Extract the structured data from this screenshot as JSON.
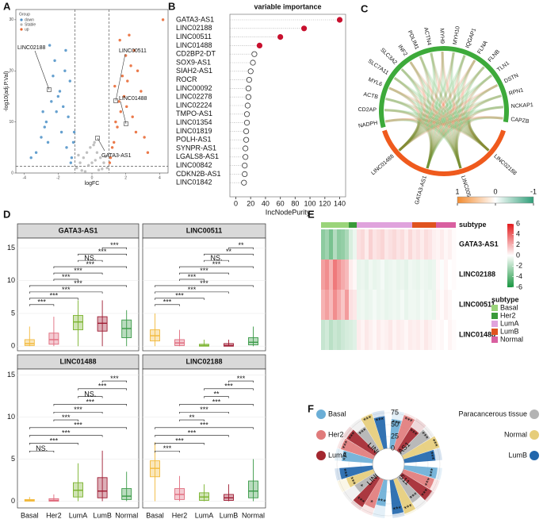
{
  "panels": {
    "A": {
      "letter": "A",
      "type": "scatter",
      "xlabel": "logFC",
      "ylabel": "-log10(adj.P.Val)",
      "xlim": [
        -4.5,
        4.5
      ],
      "ylim": [
        0,
        32
      ],
      "xticks": [
        -4,
        -2,
        0,
        2,
        4
      ],
      "yticks": [
        0,
        10,
        20,
        30
      ],
      "cutoff_lines": {
        "x": [
          -1,
          1
        ],
        "y": 1.3
      },
      "legend_title": "Group",
      "groups": [
        {
          "name": "down",
          "color": "#4a8fc7",
          "x": [
            -1.2,
            -1.5,
            -1.8,
            -2.1,
            -2.4,
            -2.7,
            -3.0,
            -3.3,
            -1.3,
            -1.6,
            -1.9,
            -2.2,
            -2.5,
            -2.8,
            -1.1,
            -1.4,
            -1.7,
            -2.0,
            -2.3,
            -2.6,
            -1.25,
            -1.55,
            -2.9,
            -3.6,
            -1.05
          ],
          "y": [
            3,
            5,
            8,
            12,
            14,
            10,
            7,
            4,
            18,
            20,
            16,
            22,
            25,
            9,
            6,
            11,
            13,
            15,
            19,
            6,
            2,
            24,
            12,
            3,
            8
          ]
        },
        {
          "name": "Stable",
          "color": "#b5b5b5",
          "x": [
            -0.9,
            -0.7,
            -0.5,
            -0.3,
            -0.1,
            0.1,
            0.3,
            0.5,
            0.7,
            0.9,
            -0.6,
            -0.2,
            0.2,
            0.6,
            -0.8,
            0.8,
            -0.4,
            0.4,
            0,
            0.15
          ],
          "y": [
            1,
            2,
            3,
            4,
            5,
            5.5,
            4,
            3,
            2,
            1,
            0.5,
            1.5,
            2.5,
            0.8,
            3.5,
            3.2,
            0.3,
            0.6,
            2,
            6
          ]
        },
        {
          "name": "up",
          "color": "#e8632b",
          "x": [
            1.1,
            1.3,
            1.5,
            1.7,
            1.9,
            2.1,
            2.3,
            2.5,
            2.7,
            2.9,
            1.2,
            1.4,
            1.6,
            1.8,
            2.0,
            2.2,
            2.4,
            2.6,
            1.05,
            1.35,
            1.65,
            2.05,
            3.1,
            3.3,
            4.2
          ],
          "y": [
            3,
            6,
            9,
            12,
            15,
            18,
            21,
            24,
            20,
            16,
            5,
            10,
            14,
            19,
            23,
            27,
            11,
            8,
            2,
            17,
            26,
            13,
            7,
            4,
            30
          ]
        }
      ],
      "annotations": [
        "LINC02188",
        "LINC00511",
        "LINC01488",
        "GATA3-AS1"
      ]
    },
    "B": {
      "letter": "B",
      "type": "dot",
      "title": "variable importance",
      "xlabel": "IncNodePurity",
      "xlim": [
        -8,
        148
      ],
      "xticks": [
        0,
        20,
        40,
        60,
        80,
        100,
        120,
        140
      ],
      "categories": [
        "GATA3-AS1",
        "LINC02188",
        "LINC00511",
        "LINC01488",
        "CD2BP2-DT",
        "SOX9-AS1",
        "SIAH2-AS1",
        "ROCR",
        "LINC00092",
        "LINC02278",
        "LINC02224",
        "TMPO-AS1",
        "LINC01354",
        "LINC01819",
        "POLH-AS1",
        "SYNPR-AS1",
        "LGALS8-AS1",
        "LINC00842",
        "CDKN2B-AS1",
        "LINC01842"
      ],
      "values": [
        140,
        92,
        60,
        32,
        25,
        23,
        20,
        18,
        17,
        17,
        16,
        15,
        15,
        14,
        14,
        13,
        13,
        12,
        12,
        11
      ],
      "colors": [
        "#c8102e",
        "#c8102e",
        "#c8102e",
        "#c8102e",
        "#ffffff",
        "#ffffff",
        "#ffffff",
        "#ffffff",
        "#ffffff",
        "#ffffff",
        "#ffffff",
        "#ffffff",
        "#ffffff",
        "#ffffff",
        "#ffffff",
        "#ffffff",
        "#ffffff",
        "#ffffff",
        "#ffffff",
        "#ffffff"
      ]
    },
    "C": {
      "letter": "C",
      "type": "chord",
      "genes": [
        "NADPH",
        "CD2AP",
        "ACTB",
        "MYL6",
        "SLC7A11",
        "SLC3A2",
        "INF2",
        "PDLIM1",
        "ACTN4",
        "MYH9",
        "MYH10",
        "IQGAP1",
        "FLNA",
        "FLNB",
        "TLN1",
        "DSTN",
        "RPN1",
        "NCKAP1",
        "CAPZB"
      ],
      "lncRNAs": [
        "LINC02188",
        "LINC00511",
        "GATA3-AS1",
        "LINC01488"
      ],
      "gene_color": "#3daa3a",
      "lnc_color": "#ef5a1d",
      "colorbar": {
        "colors": [
          "#f28a2e",
          "#ffffff",
          "#2e9e78"
        ],
        "clim": [
          -1,
          1
        ],
        "ticks": [
          1,
          0,
          -1
        ]
      }
    },
    "D": {
      "letter": "D",
      "type": "box",
      "categories": [
        "Basal",
        "Her2",
        "LumA",
        "LumB",
        "Normal"
      ],
      "colors": [
        "#f2b93b",
        "#e06b7d",
        "#7ab32e",
        "#9e1b32",
        "#3a9a47"
      ],
      "yticks": [
        0,
        5,
        10,
        15
      ],
      "subpanels": [
        {
          "title": "GATA3-AS1",
          "ylim": [
            -0.7,
            16.5
          ],
          "stats": [
            [
              0,
              0.1,
              0.4,
              1,
              3
            ],
            [
              0,
              0.3,
              1,
              2,
              4.5
            ],
            [
              0,
              2.5,
              3.7,
              4.7,
              7
            ],
            [
              0,
              2.3,
              3.5,
              4.5,
              7
            ],
            [
              0,
              1.3,
              2.7,
              4,
              5.5
            ]
          ],
          "sig": [
            "***",
            "***",
            "***",
            "***",
            "***",
            "***",
            "***",
            "NS.",
            "***",
            "***"
          ]
        },
        {
          "title": "LINC00511",
          "ylim": [
            -0.7,
            16.5
          ],
          "stats": [
            [
              0,
              0.8,
              1.6,
              2.5,
              5
            ],
            [
              0,
              0.1,
              0.5,
              1,
              2.5
            ],
            [
              0,
              0,
              0.1,
              0.3,
              1
            ],
            [
              0,
              0,
              0.1,
              0.4,
              1
            ],
            [
              0,
              0.2,
              0.6,
              1.3,
              3
            ]
          ],
          "sig": [
            "***",
            "***",
            "***",
            "***",
            "***",
            "***",
            "***",
            "NS.",
            "**",
            "**"
          ]
        },
        {
          "title": "LINC01488",
          "ylim": [
            -0.8,
            15.7
          ],
          "stats": [
            [
              0,
              0,
              0.1,
              0.2,
              0.5
            ],
            [
              0,
              0,
              0.1,
              0.3,
              0.8
            ],
            [
              0,
              0.5,
              1.3,
              2.2,
              4.5
            ],
            [
              0,
              0.4,
              1.2,
              2.8,
              6
            ],
            [
              0,
              0.2,
              0.6,
              1.5,
              3.5
            ]
          ],
          "sig": [
            "NS.",
            "***",
            "***",
            "***",
            "***",
            "***",
            "***",
            "NS.",
            "***",
            "***"
          ]
        },
        {
          "title": "LINC02188",
          "ylim": [
            -0.8,
            15.7
          ],
          "stats": [
            [
              0,
              2.9,
              3.9,
              4.8,
              7
            ],
            [
              0,
              0.2,
              0.8,
              1.5,
              3
            ],
            [
              0,
              0.1,
              0.5,
              1,
              2
            ],
            [
              0,
              0.1,
              0.4,
              0.8,
              2
            ],
            [
              0,
              0.4,
              1.2,
              2.4,
              5
            ]
          ],
          "sig": [
            "***",
            "***",
            "***",
            "***",
            "**",
            "***",
            "***",
            "**",
            "***",
            "***"
          ]
        }
      ]
    },
    "E": {
      "letter": "E",
      "type": "heatmap",
      "subtype_label": "subtype",
      "legend_title": "subtype",
      "rows": [
        "GATA3-AS1",
        "LINC02188",
        "LINC00511",
        "LINC01488"
      ],
      "subtypes": [
        {
          "name": "Basal",
          "color": "#9ad47a",
          "columns": 7
        },
        {
          "name": "Her2",
          "color": "#3a9a3a",
          "columns": 2
        },
        {
          "name": "LumA",
          "color": "#e0a3dd",
          "columns": 14
        },
        {
          "name": "LumB",
          "color": "#e0531f",
          "columns": 6
        },
        {
          "name": "Normal",
          "color": "#d95fa0",
          "columns": 5
        }
      ],
      "values": [
        [
          -3,
          -2.5,
          -3.5,
          -2,
          -3,
          -2.8,
          -2.2,
          -1,
          -0.5,
          0.8,
          1,
          0.5,
          1.2,
          0.7,
          0.9,
          1.1,
          0.6,
          0.8,
          1,
          0.7,
          0.9,
          0.5,
          1,
          0.6,
          0.8,
          0.5,
          0.9,
          0.7,
          0.4,
          0.3,
          0.5,
          0.2,
          0.4,
          0.1
        ],
        [
          2.5,
          3,
          2,
          3.5,
          2.8,
          2.2,
          1.8,
          0.5,
          0.2,
          -0.6,
          -0.5,
          -0.7,
          -0.4,
          -0.6,
          -0.5,
          -0.3,
          -0.6,
          -0.5,
          -0.4,
          -0.6,
          -0.5,
          -0.7,
          -0.4,
          -0.5,
          -0.6,
          -0.4,
          -0.5,
          -0.6,
          -0.5,
          0.2,
          -0.1,
          0.3,
          0,
          0.1
        ],
        [
          2,
          2.5,
          1.8,
          3,
          2.2,
          1.5,
          2.6,
          0.8,
          0.6,
          -0.5,
          -0.4,
          -0.6,
          -0.5,
          -0.3,
          -0.5,
          -0.4,
          -0.6,
          -0.5,
          -0.4,
          -0.5,
          -0.3,
          -0.6,
          -0.4,
          -0.4,
          -0.5,
          -0.3,
          -0.5,
          -0.4,
          -0.5,
          0.3,
          0.1,
          0.4,
          0.2,
          0
        ],
        [
          -1.5,
          -1.2,
          -1.8,
          -1.4,
          -1.6,
          -1.3,
          -1.1,
          -1,
          -0.8,
          0.5,
          0.3,
          0.6,
          0.4,
          0.2,
          0.5,
          0.3,
          0.4,
          0.6,
          0.3,
          0.5,
          0.4,
          0.2,
          0.5,
          0.4,
          0.5,
          0.3,
          0.6,
          0.4,
          0.2,
          0.1,
          0.2,
          0,
          0.3,
          0.1
        ]
      ],
      "colorbar": {
        "colors": [
          "#e31a1c",
          "#ffffff",
          "#1a9641"
        ],
        "clim": [
          -6,
          6
        ],
        "ticks": [
          6,
          4,
          2,
          0,
          -2,
          -4,
          -6
        ]
      }
    },
    "F": {
      "letter": "F",
      "type": "radial-bar",
      "rlim": [
        0,
        80
      ],
      "rticks": [
        0,
        25,
        50,
        75
      ],
      "groups": [
        {
          "name": "Basal",
          "color": "#6baed6"
        },
        {
          "name": "Her2",
          "color": "#e07b7b"
        },
        {
          "name": "LumA",
          "color": "#a3272f"
        },
        {
          "name": "Paracancerous tissue",
          "color": "#b3b3b3"
        },
        {
          "name": "Normal",
          "color": "#e6cd7a"
        },
        {
          "name": "LumB",
          "color": "#2166ac"
        }
      ],
      "genes": [
        {
          "name": "LINC02188",
          "values": [
            65,
            72,
            70,
            60,
            78,
            68
          ],
          "stars": [
            "***",
            "***",
            "***",
            "***",
            "***",
            "***"
          ]
        },
        {
          "name": "GATA3-AS1",
          "values": [
            62,
            75,
            58,
            70,
            80,
            66
          ],
          "stars": [
            "***",
            "***",
            "***",
            "***",
            "***",
            "***"
          ]
        },
        {
          "name": "LINC00511",
          "values": [
            70,
            68,
            74,
            62,
            76,
            72
          ],
          "stars": [
            "***",
            "***",
            "***",
            "***",
            "***",
            "***"
          ]
        },
        {
          "name": "LINC01488",
          "values": [
            55,
            64,
            72,
            50,
            60,
            70
          ],
          "stars": [
            "***",
            "*",
            "***",
            "*",
            "***",
            "***"
          ]
        }
      ]
    }
  }
}
